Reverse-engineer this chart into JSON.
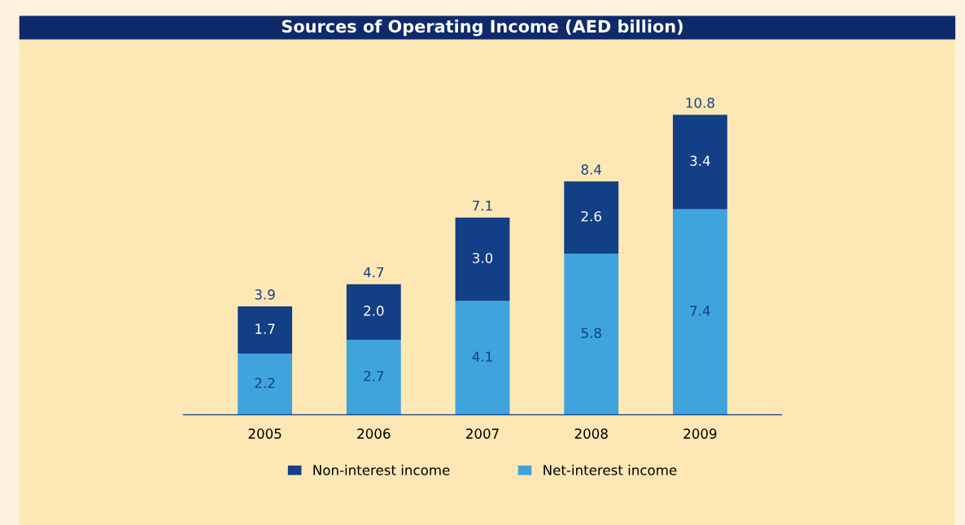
{
  "chart_data": {
    "type": "bar",
    "title": "Sources of Operating Income (AED billion)",
    "stacked": true,
    "categories": [
      "2005",
      "2006",
      "2007",
      "2008",
      "2009"
    ],
    "series": [
      {
        "name": "Net-interest income",
        "color": "#3fa3dc",
        "values": [
          2.2,
          2.7,
          4.1,
          5.8,
          7.4
        ],
        "value_labels": [
          "2.2",
          "2.7",
          "4.1",
          "5.8",
          "7.4"
        ]
      },
      {
        "name": "Non-interest income",
        "color": "#123f86",
        "values": [
          1.7,
          2.0,
          3.0,
          2.6,
          3.4
        ],
        "value_labels": [
          "1.7",
          "2.0",
          "3.0",
          "2.6",
          "3.4"
        ]
      }
    ],
    "totals": [
      "3.9",
      "4.7",
      "7.1",
      "8.4",
      "10.8"
    ],
    "legend": "bottom",
    "grid": false
  }
}
